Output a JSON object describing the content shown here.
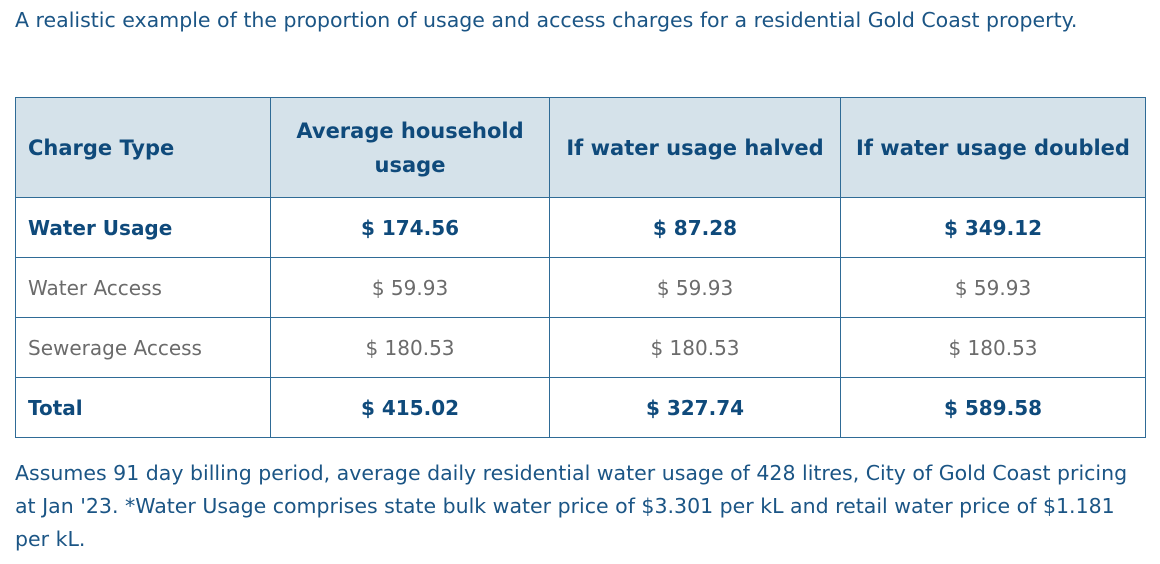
{
  "intro": "A realistic example of the proportion of usage and access charges for a residential Gold Coast property.",
  "table": {
    "headers": [
      "Charge Type",
      "Average household usage",
      "If water usage halved",
      "If water usage doubled"
    ],
    "rows": [
      {
        "label": "Water Usage",
        "values": [
          "$ 174.56",
          "$ 87.28",
          "$ 349.12"
        ],
        "bold": true
      },
      {
        "label": "Water Access",
        "values": [
          "$ 59.93",
          "$ 59.93",
          "$ 59.93"
        ],
        "bold": false
      },
      {
        "label": "Sewerage Access",
        "values": [
          "$ 180.53",
          "$ 180.53",
          "$ 180.53"
        ],
        "bold": false
      },
      {
        "label": "Total",
        "values": [
          "$ 415.02",
          "$ 327.74",
          "$ 589.58"
        ],
        "bold": true
      }
    ]
  },
  "note": "Assumes 91 day billing period, average daily residential water usage of 428 litres, City of Gold Coast pricing at Jan '23.  *Water Usage comprises state bulk water price of $3.301 per kL and retail water price of $1.181 per kL.",
  "colors": {
    "header_bg": "#d5e2ea",
    "text": "#0f4a7b",
    "border": "#2f6b96",
    "muted": "#6b6b6b"
  }
}
